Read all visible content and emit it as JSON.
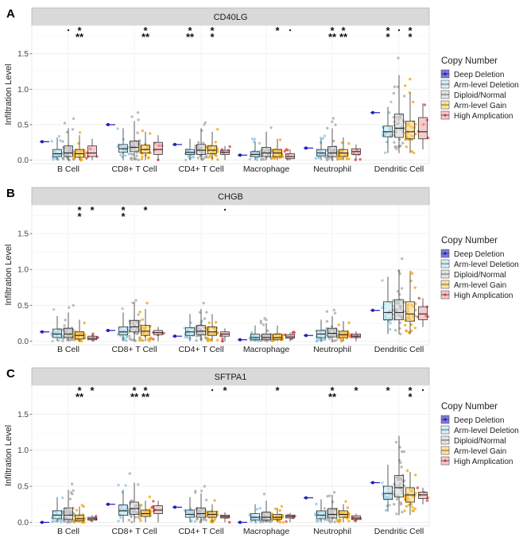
{
  "figure": {
    "legend_title": "Copy Number",
    "legend_items": [
      {
        "name": "Deep Deletion",
        "color": "#1f1fbf"
      },
      {
        "name": "Arm-level Deletion",
        "color": "#87c6dd"
      },
      {
        "name": "Diploid/Normal",
        "color": "#a6a6a6"
      },
      {
        "name": "Arm-level Gain",
        "color": "#f0a400"
      },
      {
        "name": "High Amplication",
        "color": "#e0393e"
      }
    ],
    "ylabel": "Infiltration Level"
  },
  "chart_data": [
    {
      "type": "box",
      "panel_label": "A",
      "title": "CD40LG",
      "ylabel": "Infiltration Level",
      "ylim": [
        -0.05,
        1.9
      ],
      "yticks": [
        0.0,
        0.5,
        1.0,
        1.5
      ],
      "ytick_labels": [
        "0.0",
        "0.5",
        "1.0",
        "1.5"
      ],
      "categories": [
        "B Cell",
        "CD8+ T Cell",
        "CD4+ T Cell",
        "Macrophage",
        "Neutrophil",
        "Dendritic Cell"
      ],
      "series": [
        {
          "name": "Deep Deletion",
          "values": [
            [
              0.26,
              0.26,
              0.26,
              0.26,
              0.26
            ],
            [
              0.5,
              0.5,
              0.5,
              0.5,
              0.5
            ],
            [
              0.22,
              0.22,
              0.22,
              0.22,
              0.22
            ],
            [
              0.07,
              0.07,
              0.07,
              0.07,
              0.07
            ],
            [
              0.17,
              0.17,
              0.17,
              0.17,
              0.17
            ],
            [
              0.67,
              0.67,
              0.67,
              0.67,
              0.67
            ]
          ]
        },
        {
          "name": "Arm-level Deletion",
          "values": [
            [
              0.0,
              0.05,
              0.09,
              0.15,
              0.32
            ],
            [
              0.0,
              0.11,
              0.16,
              0.22,
              0.45
            ],
            [
              0.0,
              0.08,
              0.11,
              0.15,
              0.3
            ],
            [
              0.0,
              0.05,
              0.08,
              0.12,
              0.26
            ],
            [
              0.0,
              0.06,
              0.1,
              0.15,
              0.3
            ],
            [
              0.1,
              0.33,
              0.4,
              0.48,
              0.75
            ]
          ]
        },
        {
          "name": "Diploid/Normal",
          "values": [
            [
              0.0,
              0.05,
              0.1,
              0.2,
              0.45
            ],
            [
              0.0,
              0.12,
              0.18,
              0.27,
              0.55
            ],
            [
              0.0,
              0.08,
              0.14,
              0.22,
              0.45
            ],
            [
              0.0,
              0.05,
              0.1,
              0.18,
              0.4
            ],
            [
              0.0,
              0.05,
              0.1,
              0.19,
              0.45
            ],
            [
              0.1,
              0.32,
              0.45,
              0.65,
              1.2
            ]
          ]
        },
        {
          "name": "Arm-level Gain",
          "values": [
            [
              0.0,
              0.04,
              0.09,
              0.15,
              0.35
            ],
            [
              0.0,
              0.1,
              0.15,
              0.21,
              0.4
            ],
            [
              0.0,
              0.09,
              0.14,
              0.2,
              0.4
            ],
            [
              0.0,
              0.05,
              0.1,
              0.15,
              0.3
            ],
            [
              0.0,
              0.05,
              0.1,
              0.15,
              0.32
            ],
            [
              0.1,
              0.3,
              0.4,
              0.55,
              0.95
            ]
          ]
        },
        {
          "name": "High Amplication",
          "values": [
            [
              0.0,
              0.05,
              0.1,
              0.2,
              0.3
            ],
            [
              0.0,
              0.08,
              0.15,
              0.25,
              0.35
            ],
            [
              0.0,
              0.08,
              0.11,
              0.14,
              0.2
            ],
            [
              0.0,
              0.02,
              0.05,
              0.09,
              0.15
            ],
            [
              0.0,
              0.08,
              0.12,
              0.16,
              0.22
            ],
            [
              0.15,
              0.3,
              0.4,
              0.6,
              0.8
            ]
          ]
        }
      ],
      "annotations": [
        {
          "category": "B Cell",
          "group": "Diploid/Normal",
          "text": "·"
        },
        {
          "category": "B Cell",
          "group": "Arm-level Gain",
          "text": "***"
        },
        {
          "category": "CD8+ T Cell",
          "group": "Arm-level Gain",
          "text": "***"
        },
        {
          "category": "CD4+ T Cell",
          "group": "Arm-level Deletion",
          "text": "***"
        },
        {
          "category": "CD4+ T Cell",
          "group": "Arm-level Gain",
          "text": "**"
        },
        {
          "category": "Macrophage",
          "group": "Arm-level Gain",
          "text": "*"
        },
        {
          "category": "Macrophage",
          "group": "High Amplication",
          "text": "·"
        },
        {
          "category": "Neutrophil",
          "group": "Diploid/Normal",
          "text": "***"
        },
        {
          "category": "Neutrophil",
          "group": "Arm-level Gain",
          "text": "***"
        },
        {
          "category": "Dendritic Cell",
          "group": "Arm-level Deletion",
          "text": "**"
        },
        {
          "category": "Dendritic Cell",
          "group": "Diploid/Normal",
          "text": "·"
        },
        {
          "category": "Dendritic Cell",
          "group": "Arm-level Gain",
          "text": "**"
        }
      ]
    },
    {
      "type": "box",
      "panel_label": "B",
      "title": "CHGB",
      "ylabel": "Infiltration Level",
      "ylim": [
        -0.05,
        1.9
      ],
      "yticks": [
        0.0,
        0.5,
        1.0,
        1.5
      ],
      "ytick_labels": [
        "0.0",
        "0.5",
        "1.0",
        "1.5"
      ],
      "categories": [
        "B Cell",
        "CD8+ T Cell",
        "CD4+ T Cell",
        "Macrophage",
        "Neutrophil",
        "Dendritic Cell"
      ],
      "series": [
        {
          "name": "Deep Deletion",
          "values": [
            [
              0.13,
              0.13,
              0.13,
              0.13,
              0.13
            ],
            [
              0.15,
              0.15,
              0.15,
              0.15,
              0.15
            ],
            [
              0.07,
              0.07,
              0.07,
              0.07,
              0.07
            ],
            [
              0.02,
              0.02,
              0.02,
              0.02,
              0.02
            ],
            [
              0.08,
              0.08,
              0.08,
              0.08,
              0.08
            ],
            [
              0.43,
              0.43,
              0.43,
              0.43,
              0.43
            ]
          ]
        },
        {
          "name": "Arm-level Deletion",
          "values": [
            [
              0.0,
              0.05,
              0.1,
              0.17,
              0.35
            ],
            [
              0.0,
              0.09,
              0.13,
              0.2,
              0.4
            ],
            [
              0.0,
              0.08,
              0.13,
              0.19,
              0.38
            ],
            [
              0.0,
              0.02,
              0.05,
              0.1,
              0.22
            ],
            [
              0.0,
              0.05,
              0.1,
              0.15,
              0.3
            ],
            [
              0.1,
              0.3,
              0.4,
              0.55,
              0.9
            ]
          ]
        },
        {
          "name": "Diploid/Normal",
          "values": [
            [
              0.0,
              0.05,
              0.1,
              0.18,
              0.4
            ],
            [
              0.0,
              0.13,
              0.2,
              0.29,
              0.55
            ],
            [
              0.0,
              0.09,
              0.14,
              0.22,
              0.45
            ],
            [
              0.0,
              0.02,
              0.05,
              0.1,
              0.25
            ],
            [
              0.0,
              0.06,
              0.11,
              0.18,
              0.35
            ],
            [
              0.1,
              0.3,
              0.4,
              0.58,
              1.0
            ]
          ]
        },
        {
          "name": "Arm-level Gain",
          "values": [
            [
              0.0,
              0.03,
              0.08,
              0.13,
              0.3
            ],
            [
              0.0,
              0.08,
              0.14,
              0.22,
              0.45
            ],
            [
              0.0,
              0.08,
              0.13,
              0.2,
              0.38
            ],
            [
              0.0,
              0.02,
              0.05,
              0.1,
              0.22
            ],
            [
              0.0,
              0.05,
              0.09,
              0.14,
              0.28
            ],
            [
              0.1,
              0.28,
              0.38,
              0.55,
              0.95
            ]
          ]
        },
        {
          "name": "High Amplication",
          "values": [
            [
              0.0,
              0.02,
              0.04,
              0.07,
              0.1
            ],
            [
              0.0,
              0.09,
              0.12,
              0.15,
              0.2
            ],
            [
              0.0,
              0.07,
              0.1,
              0.13,
              0.18
            ],
            [
              0.0,
              0.04,
              0.06,
              0.09,
              0.12
            ],
            [
              0.0,
              0.05,
              0.07,
              0.1,
              0.14
            ],
            [
              0.2,
              0.3,
              0.38,
              0.48,
              0.6
            ]
          ]
        }
      ],
      "annotations": [
        {
          "category": "B Cell",
          "group": "Arm-level Gain",
          "text": "**"
        },
        {
          "category": "B Cell",
          "group": "High Amplication",
          "text": "*"
        },
        {
          "category": "CD8+ T Cell",
          "group": "Arm-level Deletion",
          "text": "**"
        },
        {
          "category": "CD8+ T Cell",
          "group": "Arm-level Gain",
          "text": "*"
        },
        {
          "category": "CD4+ T Cell",
          "group": "High Amplication",
          "text": "·"
        }
      ]
    },
    {
      "type": "box",
      "panel_label": "C",
      "title": "SFTPA1",
      "ylabel": "Infiltration Level",
      "ylim": [
        -0.05,
        1.9
      ],
      "yticks": [
        0.0,
        0.5,
        1.0,
        1.5
      ],
      "ytick_labels": [
        "0.0",
        "0.5",
        "1.0",
        "1.5"
      ],
      "categories": [
        "B Cell",
        "CD8+ T Cell",
        "CD4+ T Cell",
        "Macrophage",
        "Neutrophil",
        "Dendritic Cell"
      ],
      "series": [
        {
          "name": "Deep Deletion",
          "values": [
            [
              0.0,
              0.0,
              0.0,
              0.0,
              0.0
            ],
            [
              0.25,
              0.25,
              0.25,
              0.25,
              0.25
            ],
            [
              0.21,
              0.21,
              0.21,
              0.21,
              0.21
            ],
            [
              0.0,
              0.0,
              0.0,
              0.0,
              0.0
            ],
            [
              0.34,
              0.34,
              0.34,
              0.34,
              0.34
            ],
            [
              0.55,
              0.55,
              0.55,
              0.55,
              0.55
            ]
          ]
        },
        {
          "name": "Arm-level Deletion",
          "values": [
            [
              0.0,
              0.05,
              0.1,
              0.16,
              0.35
            ],
            [
              0.0,
              0.1,
              0.16,
              0.24,
              0.45
            ],
            [
              0.0,
              0.07,
              0.11,
              0.17,
              0.35
            ],
            [
              0.0,
              0.03,
              0.07,
              0.12,
              0.25
            ],
            [
              0.0,
              0.05,
              0.1,
              0.16,
              0.32
            ],
            [
              0.15,
              0.32,
              0.4,
              0.5,
              0.8
            ]
          ]
        },
        {
          "name": "Diploid/Normal",
          "values": [
            [
              0.0,
              0.04,
              0.1,
              0.2,
              0.45
            ],
            [
              0.0,
              0.11,
              0.19,
              0.28,
              0.55
            ],
            [
              0.0,
              0.07,
              0.12,
              0.2,
              0.4
            ],
            [
              0.0,
              0.03,
              0.07,
              0.14,
              0.3
            ],
            [
              0.0,
              0.06,
              0.11,
              0.19,
              0.38
            ],
            [
              0.1,
              0.35,
              0.48,
              0.65,
              1.2
            ]
          ]
        },
        {
          "name": "Arm-level Gain",
          "values": [
            [
              0.0,
              0.02,
              0.05,
              0.1,
              0.22
            ],
            [
              0.0,
              0.08,
              0.12,
              0.17,
              0.3
            ],
            [
              0.0,
              0.07,
              0.11,
              0.15,
              0.25
            ],
            [
              0.0,
              0.04,
              0.07,
              0.11,
              0.2
            ],
            [
              0.0,
              0.07,
              0.11,
              0.16,
              0.25
            ],
            [
              0.1,
              0.28,
              0.38,
              0.48,
              0.7
            ]
          ]
        },
        {
          "name": "High Amplication",
          "values": [
            [
              0.0,
              0.03,
              0.05,
              0.07,
              0.1
            ],
            [
              0.0,
              0.12,
              0.17,
              0.23,
              0.3
            ],
            [
              0.0,
              0.06,
              0.08,
              0.1,
              0.14
            ],
            [
              0.0,
              0.06,
              0.08,
              0.1,
              0.13
            ],
            [
              0.0,
              0.04,
              0.06,
              0.09,
              0.12
            ],
            [
              0.25,
              0.33,
              0.38,
              0.42,
              0.48
            ]
          ]
        }
      ],
      "annotations": [
        {
          "category": "B Cell",
          "group": "Arm-level Gain",
          "text": "***"
        },
        {
          "category": "B Cell",
          "group": "High Amplication",
          "text": "*"
        },
        {
          "category": "CD8+ T Cell",
          "group": "Diploid/Normal",
          "text": "***"
        },
        {
          "category": "CD8+ T Cell",
          "group": "Arm-level Gain",
          "text": "***"
        },
        {
          "category": "CD4+ T Cell",
          "group": "Arm-level Gain",
          "text": "·"
        },
        {
          "category": "CD4+ T Cell",
          "group": "High Amplication",
          "text": "*"
        },
        {
          "category": "Macrophage",
          "group": "Arm-level Gain",
          "text": "*"
        },
        {
          "category": "Neutrophil",
          "group": "Diploid/Normal",
          "text": "***"
        },
        {
          "category": "Neutrophil",
          "group": "High Amplication",
          "text": "*"
        },
        {
          "category": "Dendritic Cell",
          "group": "Arm-level Deletion",
          "text": "*"
        },
        {
          "category": "Dendritic Cell",
          "group": "Arm-level Gain",
          "text": "**"
        },
        {
          "category": "Dendritic Cell",
          "group": "High Amplication",
          "text": "·"
        }
      ]
    }
  ]
}
